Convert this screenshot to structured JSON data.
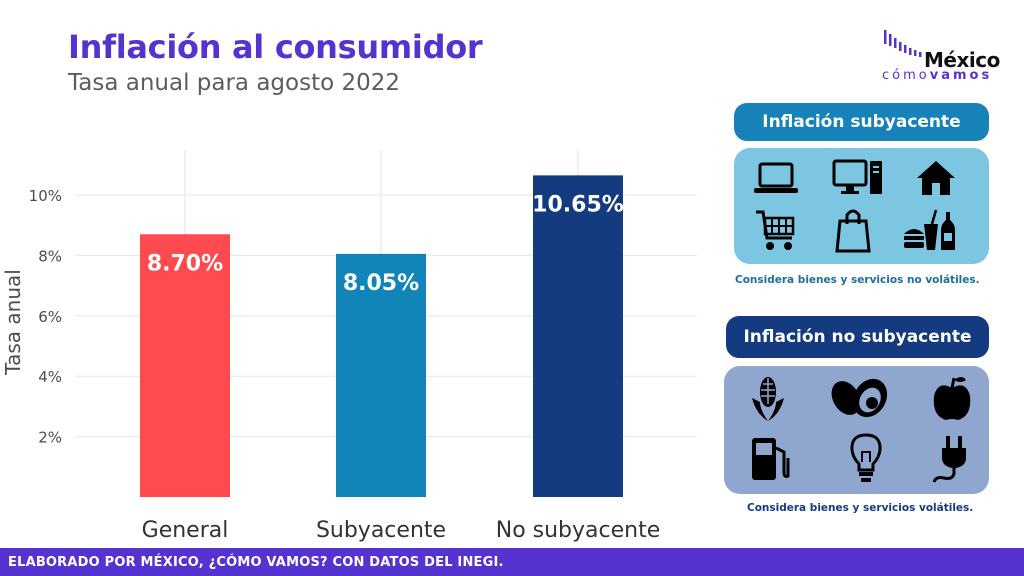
{
  "header": {
    "title": "Inflación al consumidor",
    "subtitle": "Tasa anual para agosto 2022"
  },
  "logo": {
    "main": "México",
    "sub_light": "cómo",
    "sub_bold": "vamos"
  },
  "chart_data": {
    "type": "bar",
    "title": "Inflación al consumidor",
    "subtitle": "Tasa anual para agosto 2022",
    "categories": [
      "General",
      "Subyacente",
      "No subyacente"
    ],
    "values": [
      8.7,
      8.05,
      10.65
    ],
    "value_labels": [
      "8.70%",
      "8.05%",
      "10.65%"
    ],
    "colors": [
      "#ff4a4f",
      "#1184b8",
      "#143b80"
    ],
    "ylabel": "Tasa anual",
    "xlabel": "",
    "yticks": [
      2,
      4,
      6,
      8,
      10
    ],
    "ytick_labels": [
      "2%",
      "4%",
      "6%",
      "8%",
      "10%"
    ],
    "ylim": [
      0,
      11.5
    ],
    "grid": true
  },
  "panels": {
    "subyacente": {
      "title": "Inflación subyacente",
      "note": "Considera bienes y servicios no volátiles.",
      "icons": [
        "laptop-icon",
        "desktop-computer-icon",
        "house-icon",
        "shopping-cart-icon",
        "shopping-bag-icon",
        "fast-food-icon"
      ],
      "accent": "#1782b7",
      "background": "#7dc6e2"
    },
    "no_subyacente": {
      "title": "Inflación no subyacente",
      "note": "Considera bienes y servicios volátiles.",
      "icons": [
        "corn-icon",
        "avocado-icon",
        "apple-icon",
        "gas-pump-icon",
        "lightbulb-icon",
        "electric-plug-icon"
      ],
      "accent": "#143b80",
      "background": "#8fa6cf"
    }
  },
  "footer": {
    "text": "ELABORADO POR MÉXICO, ¿CÓMO VAMOS? CON DATOS DEL INEGI."
  }
}
